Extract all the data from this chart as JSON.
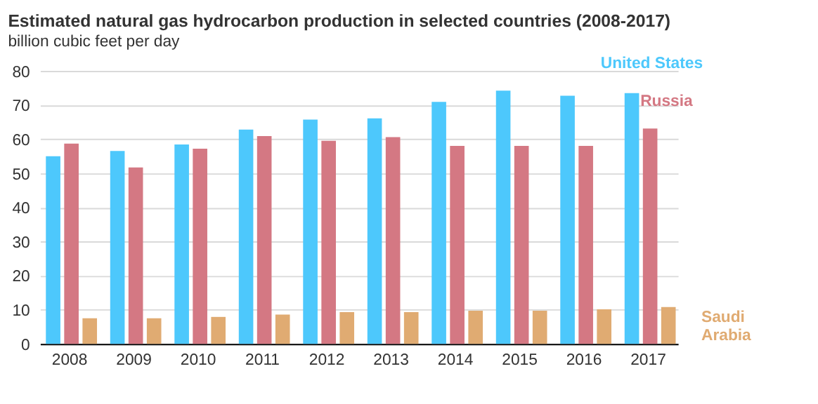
{
  "chart_data": {
    "type": "bar",
    "title": "Estimated natural gas hydrocarbon production in selected countries (2008-2017)",
    "ylabel": "billion cubic feet per day",
    "categories": [
      "2008",
      "2009",
      "2010",
      "2011",
      "2012",
      "2013",
      "2014",
      "2015",
      "2016",
      "2017"
    ],
    "series": [
      {
        "name": "United States",
        "color": "#4dc8fc",
        "values": [
          55.0,
          56.5,
          58.4,
          62.8,
          65.7,
          66.1,
          70.9,
          74.2,
          72.7,
          73.5
        ]
      },
      {
        "name": "Russia",
        "color": "#d47883",
        "values": [
          58.7,
          51.7,
          57.2,
          60.9,
          59.5,
          60.6,
          58.0,
          58.0,
          58.0,
          63.1
        ]
      },
      {
        "name": "Saudi Arabia",
        "color": "#e0ab72",
        "values": [
          7.5,
          7.5,
          7.9,
          8.6,
          9.3,
          9.3,
          9.7,
          9.7,
          10.1,
          10.8
        ]
      }
    ],
    "ylim": [
      0,
      80
    ],
    "yticks": [
      0,
      10,
      20,
      30,
      40,
      50,
      60,
      70,
      80
    ],
    "grid": "y",
    "legend": "right"
  }
}
